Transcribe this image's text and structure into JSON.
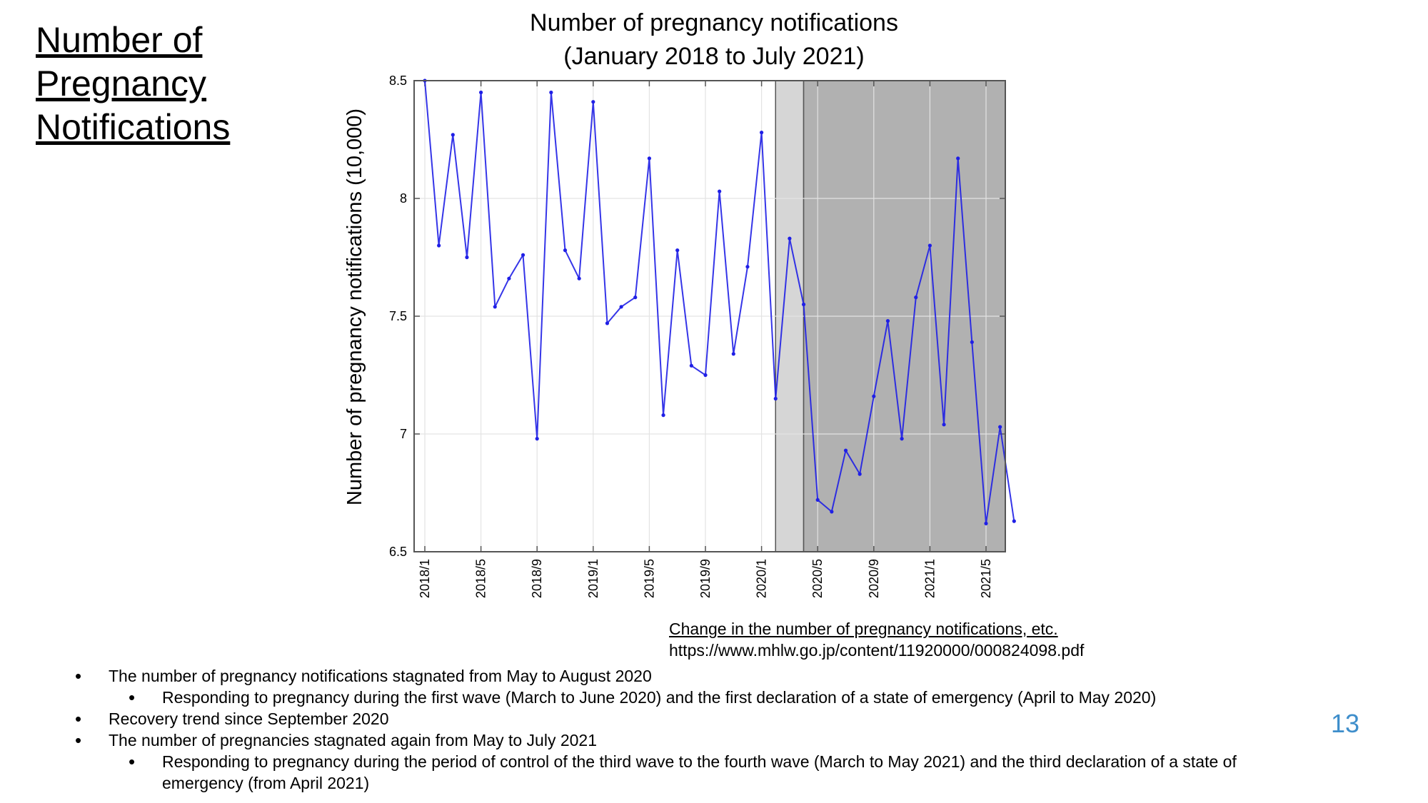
{
  "slide": {
    "title": "Number of Pregnancy Notifications",
    "page_number": "13"
  },
  "source": {
    "title": "Change in the number of pregnancy notifications, etc.",
    "url": "https://www.mhlw.go.jp/content/11920000/000824098.pdf"
  },
  "bullets": [
    {
      "level": 1,
      "text": "The number of pregnancy notifications stagnated from May to August 2020"
    },
    {
      "level": 2,
      "text": "Responding to pregnancy during the first wave (March to June 2020) and the first declaration of a state of emergency (April to May 2020)"
    },
    {
      "level": 1,
      "text": "Recovery trend since September 2020"
    },
    {
      "level": 1,
      "text": "The number of pregnancies stagnated again from May to July 2021"
    },
    {
      "level": 2,
      "text": "Responding to pregnancy during the period of control of the third wave to the fourth wave (March to May 2021) and the third declaration of a state of emergency (from April 2021)"
    }
  ],
  "chart_data": {
    "type": "line",
    "title_lines": [
      "Number of pregnancy notifications",
      "(January 2018 to July 2021)"
    ],
    "xlabel": "",
    "ylabel": "Number of pregnancy notifications (10,000)",
    "ylim": [
      6.5,
      8.5
    ],
    "yticks": [
      "6.5",
      "7",
      "7.5",
      "8",
      "8.5"
    ],
    "xticks": [
      "2018/1",
      "2018/5",
      "2018/9",
      "2019/1",
      "2019/5",
      "2019/9",
      "2020/1",
      "2020/5",
      "2020/9",
      "2021/1",
      "2021/5"
    ],
    "grid": true,
    "x": [
      "2018/1",
      "2018/2",
      "2018/3",
      "2018/4",
      "2018/5",
      "2018/6",
      "2018/7",
      "2018/8",
      "2018/9",
      "2018/10",
      "2018/11",
      "2018/12",
      "2019/1",
      "2019/2",
      "2019/3",
      "2019/4",
      "2019/5",
      "2019/6",
      "2019/7",
      "2019/8",
      "2019/9",
      "2019/10",
      "2019/11",
      "2019/12",
      "2020/1",
      "2020/2",
      "2020/3",
      "2020/4",
      "2020/5",
      "2020/6",
      "2020/7",
      "2020/8",
      "2020/9",
      "2020/10",
      "2020/11",
      "2020/12",
      "2021/1",
      "2021/2",
      "2021/3",
      "2021/4",
      "2021/5",
      "2021/6",
      "2021/7"
    ],
    "series": [
      {
        "name": "",
        "color": "#1f1fe6",
        "values": [
          8.5,
          7.8,
          8.27,
          7.75,
          8.45,
          7.54,
          7.66,
          7.76,
          6.98,
          8.45,
          7.78,
          7.66,
          8.41,
          7.47,
          7.54,
          7.58,
          8.17,
          7.08,
          7.78,
          7.29,
          7.25,
          8.03,
          7.34,
          7.71,
          8.28,
          7.15,
          7.83,
          7.55,
          6.72,
          6.67,
          6.93,
          6.83,
          7.16,
          7.48,
          6.98,
          7.58,
          7.8,
          7.04,
          8.17,
          7.39,
          6.62,
          7.03,
          6.63
        ]
      }
    ],
    "shaded_periods": [
      {
        "from": "2020/2",
        "to": "2020/4",
        "color": "#d6d6d6"
      },
      {
        "from": "2020/4",
        "to": "2021/7",
        "color": "#b1b1b1"
      }
    ]
  }
}
